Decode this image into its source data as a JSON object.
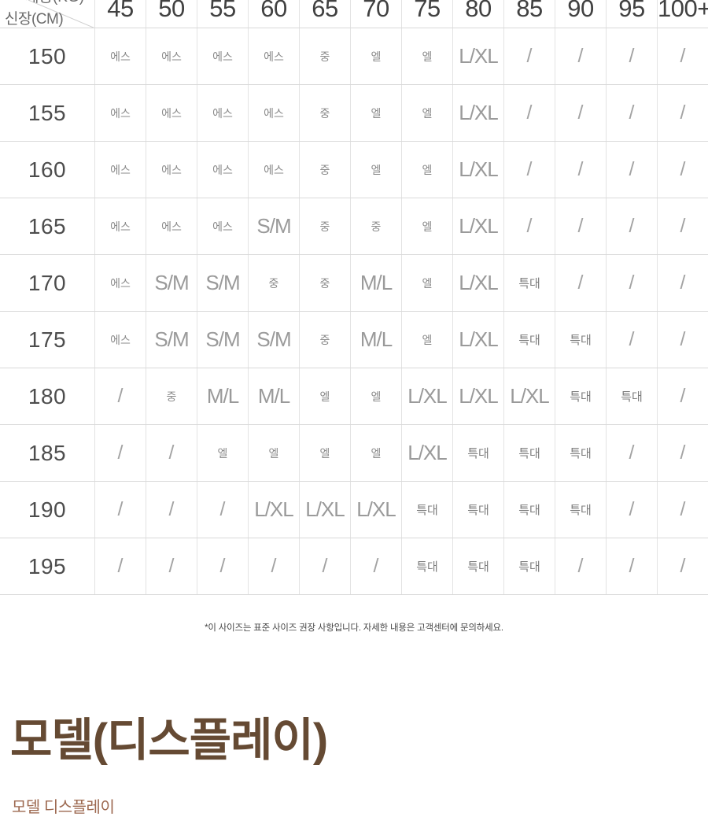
{
  "table": {
    "corner": {
      "row_axis_label": "신장(CM)",
      "col_axis_label": "체중(KG)"
    },
    "col_headers": [
      "45",
      "50",
      "55",
      "60",
      "65",
      "70",
      "75",
      "80",
      "85",
      "90",
      "95",
      "100+"
    ],
    "rows": [
      {
        "height": "150",
        "cells": [
          "에스",
          "에스",
          "에스",
          "에스",
          "중",
          "엘",
          "엘",
          "L/XL",
          "/",
          "/",
          "/",
          "/"
        ]
      },
      {
        "height": "155",
        "cells": [
          "에스",
          "에스",
          "에스",
          "에스",
          "중",
          "엘",
          "엘",
          "L/XL",
          "/",
          "/",
          "/",
          "/"
        ]
      },
      {
        "height": "160",
        "cells": [
          "에스",
          "에스",
          "에스",
          "에스",
          "중",
          "엘",
          "엘",
          "L/XL",
          "/",
          "/",
          "/",
          "/"
        ]
      },
      {
        "height": "165",
        "cells": [
          "에스",
          "에스",
          "에스",
          "S/M",
          "중",
          "중",
          "엘",
          "L/XL",
          "/",
          "/",
          "/",
          "/"
        ]
      },
      {
        "height": "170",
        "cells": [
          "에스",
          "S/M",
          "S/M",
          "중",
          "중",
          "M/L",
          "엘",
          "L/XL",
          "특대",
          "/",
          "/",
          "/"
        ]
      },
      {
        "height": "175",
        "cells": [
          "에스",
          "S/M",
          "S/M",
          "S/M",
          "중",
          "M/L",
          "엘",
          "L/XL",
          "특대",
          "특대",
          "/",
          "/"
        ]
      },
      {
        "height": "180",
        "cells": [
          "/",
          "중",
          "M/L",
          "M/L",
          "엘",
          "엘",
          "L/XL",
          "L/XL",
          "L/XL",
          "특대",
          "특대",
          "/"
        ]
      },
      {
        "height": "185",
        "cells": [
          "/",
          "/",
          "엘",
          "엘",
          "엘",
          "엘",
          "L/XL",
          "특대",
          "특대",
          "특대",
          "/",
          "/"
        ]
      },
      {
        "height": "190",
        "cells": [
          "/",
          "/",
          "/",
          "L/XL",
          "L/XL",
          "L/XL",
          "특대",
          "특대",
          "특대",
          "특대",
          "/",
          "/"
        ]
      },
      {
        "height": "195",
        "cells": [
          "/",
          "/",
          "/",
          "/",
          "/",
          "/",
          "특대",
          "특대",
          "특대",
          "/",
          "/",
          "/"
        ]
      }
    ],
    "footnote": "*이 사이즈는 표준 사이즈 권장 사항입니다. 자세한 내용은 고객센터에 문의하세요."
  },
  "section": {
    "title": "모델(디스플레이)",
    "subtitle": "모델 디스플레이"
  },
  "colors": {
    "title_brown": "#654a33",
    "subtitle_terracotta": "#9d6950",
    "row_header_text": "#4d4d4d",
    "col_header_text": "#414141",
    "cell_text_korean": "#8a8a8a",
    "cell_text_latin": "#9a9a9a",
    "border": "#d9d9d9"
  }
}
